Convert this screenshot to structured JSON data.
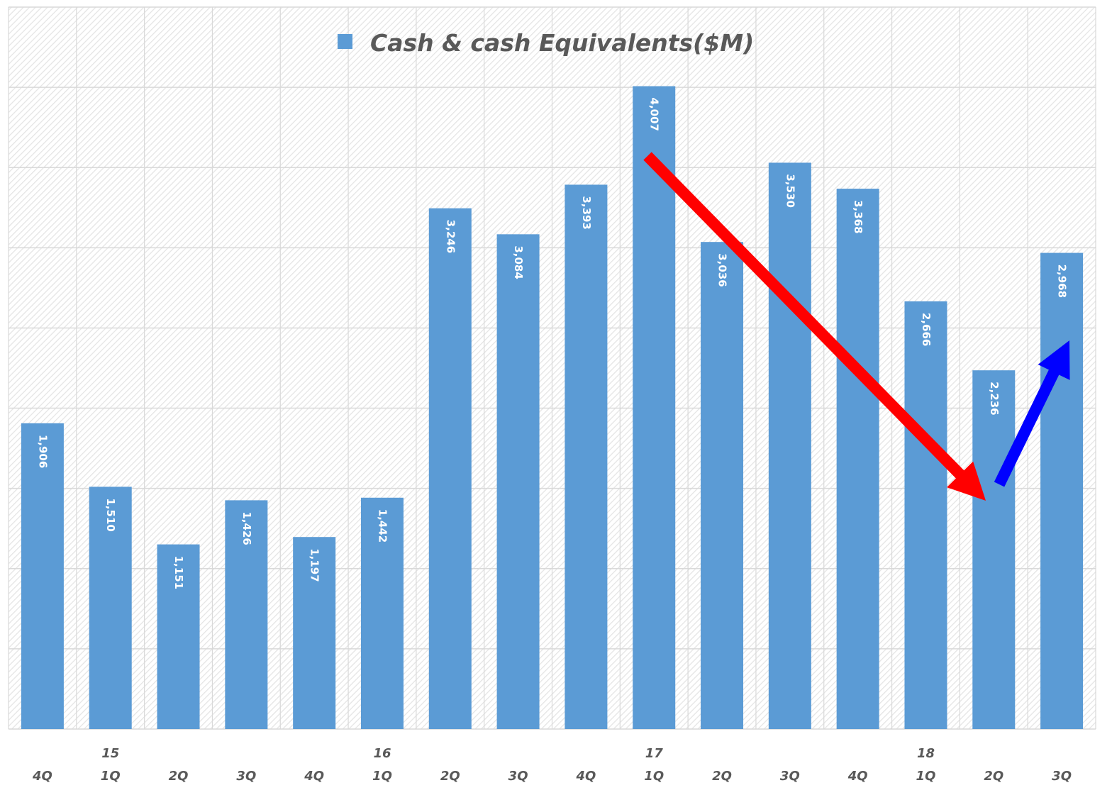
{
  "chart_data": {
    "type": "bar",
    "title": "Cash & cash Equivalents($M)",
    "legend": [
      {
        "name": "Cash & cash Equivalents($M)",
        "color": "#5B9BD5"
      }
    ],
    "legend_position": "top",
    "xlabel": "",
    "ylabel": "",
    "ylim": [
      0,
      4500
    ],
    "y_gridline_step": 500,
    "y_tick_labels_visible": false,
    "grid": true,
    "categories": [
      "15 4Q",
      "15 1Q",
      "15 2Q",
      "15 3Q",
      "15 4Q",
      "16 1Q",
      "16 2Q",
      "16 3Q",
      "16 4Q",
      "17 1Q",
      "17 2Q",
      "17 3Q",
      "17 4Q",
      "18 1Q",
      "18 2Q",
      "18 3Q"
    ],
    "x_tick_labels": [
      {
        "quarter": "4Q",
        "year": ""
      },
      {
        "quarter": "1Q",
        "year": "15"
      },
      {
        "quarter": "2Q",
        "year": ""
      },
      {
        "quarter": "3Q",
        "year": ""
      },
      {
        "quarter": "4Q",
        "year": ""
      },
      {
        "quarter": "1Q",
        "year": "16"
      },
      {
        "quarter": "2Q",
        "year": ""
      },
      {
        "quarter": "3Q",
        "year": ""
      },
      {
        "quarter": "4Q",
        "year": ""
      },
      {
        "quarter": "1Q",
        "year": "17"
      },
      {
        "quarter": "2Q",
        "year": ""
      },
      {
        "quarter": "3Q",
        "year": ""
      },
      {
        "quarter": "4Q",
        "year": ""
      },
      {
        "quarter": "1Q",
        "year": "18"
      },
      {
        "quarter": "2Q",
        "year": ""
      },
      {
        "quarter": "3Q",
        "year": ""
      }
    ],
    "series": [
      {
        "name": "Cash & cash Equivalents($M)",
        "color": "#5B9BD5",
        "values": [
          1906,
          1510,
          1151,
          1426,
          1197,
          1442,
          3246,
          3084,
          3393,
          4007,
          3036,
          3530,
          3368,
          2666,
          2236,
          2968
        ],
        "data_labels": [
          "1,906",
          "1,510",
          "1,151",
          "1,426",
          "1,197",
          "1,442",
          "3,246",
          "3,084",
          "3,393",
          "4,007",
          "3,036",
          "3,530",
          "3,368",
          "2,666",
          "2,236",
          "2,968"
        ]
      }
    ],
    "annotations": [
      {
        "type": "arrow",
        "color": "#FF0000",
        "direction": "down",
        "from_category": "17 1Q",
        "to_category": "18 2Q",
        "description": "decline from peak"
      },
      {
        "type": "arrow",
        "color": "#0000FF",
        "direction": "up",
        "from_category": "18 2Q",
        "to_category": "18 3Q",
        "description": "rebound"
      }
    ]
  },
  "colors": {
    "bar": "#5B9BD5",
    "grid": "#D9D9D9",
    "text": "#595959",
    "arrow_down": "#FF0000",
    "arrow_up": "#0000FF"
  }
}
